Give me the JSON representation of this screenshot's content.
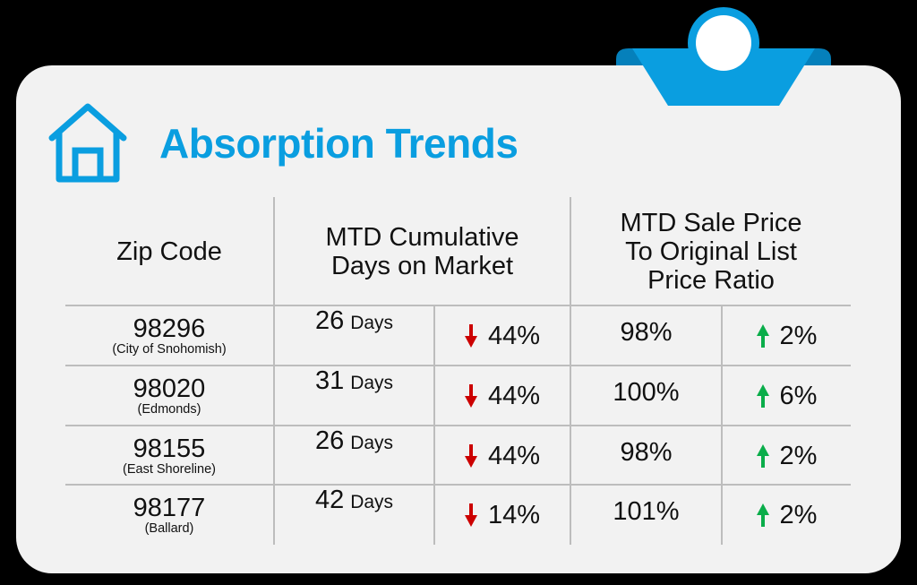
{
  "title": "Absorption Trends",
  "icons": {
    "title_icon": "house-icon",
    "clip": "clipboard-clip-icon"
  },
  "colors": {
    "accent": "#0a9ee0",
    "down": "#cc0000",
    "up": "#0aad4a",
    "card_bg": "#f2f2f2"
  },
  "table": {
    "headers": {
      "zip": "Zip Code",
      "dom_line1": "MTD Cumulative",
      "dom_line2": "Days on Market",
      "ratio_line1": "MTD Sale Price",
      "ratio_line2": "To Original List",
      "ratio_line3": "Price Ratio"
    },
    "rows": [
      {
        "zip": "98296",
        "area": "(City of Snohomish)",
        "days": "26",
        "days_unit": "Days",
        "dom_dir": "down",
        "dom_change": "44%",
        "ratio": "98%",
        "ratio_dir": "up",
        "ratio_change": "2%"
      },
      {
        "zip": "98020",
        "area": "(Edmonds)",
        "days": "31",
        "days_unit": "Days",
        "dom_dir": "down",
        "dom_change": "44%",
        "ratio": "100%",
        "ratio_dir": "up",
        "ratio_change": "6%"
      },
      {
        "zip": "98155",
        "area": "(East Shoreline)",
        "days": "26",
        "days_unit": "Days",
        "dom_dir": "down",
        "dom_change": "44%",
        "ratio": "98%",
        "ratio_dir": "up",
        "ratio_change": "2%"
      },
      {
        "zip": "98177",
        "area": "(Ballard)",
        "days": "42",
        "days_unit": "Days",
        "dom_dir": "down",
        "dom_change": "14%",
        "ratio": "101%",
        "ratio_dir": "up",
        "ratio_change": "2%"
      }
    ]
  }
}
